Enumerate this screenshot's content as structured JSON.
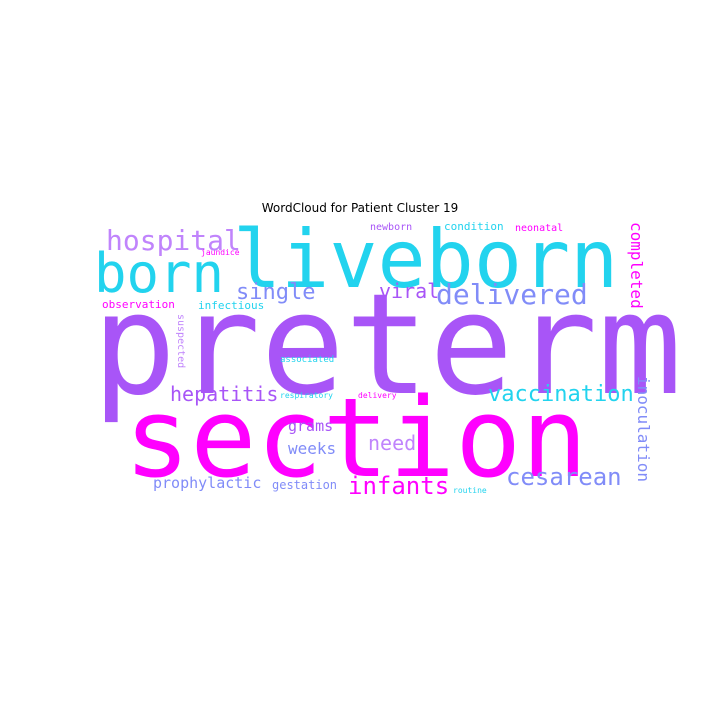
{
  "chart_data": {
    "type": "wordcloud",
    "title": "WordCloud for Patient Cluster 19",
    "palette": [
      "#ff00ff",
      "#a855f7",
      "#22d3ee",
      "#818cf8",
      "#c084fc"
    ],
    "words": [
      {
        "text": "preterm",
        "color": "#a855f7",
        "orientation": "horizontal"
      },
      {
        "text": "section",
        "color": "#ff00ff",
        "orientation": "horizontal"
      },
      {
        "text": "liveborn",
        "color": "#22d3ee",
        "orientation": "horizontal"
      },
      {
        "text": "born",
        "color": "#22d3ee",
        "orientation": "horizontal"
      },
      {
        "text": "hospital",
        "color": "#c084fc",
        "orientation": "horizontal"
      },
      {
        "text": "delivered",
        "color": "#818cf8",
        "orientation": "horizontal"
      },
      {
        "text": "single",
        "color": "#818cf8",
        "orientation": "horizontal"
      },
      {
        "text": "viral",
        "color": "#a855f7",
        "orientation": "horizontal"
      },
      {
        "text": "completed",
        "color": "#ff00ff",
        "orientation": "vertical"
      },
      {
        "text": "vaccination",
        "color": "#22d3ee",
        "orientation": "horizontal"
      },
      {
        "text": "hepatitis",
        "color": "#a855f7",
        "orientation": "horizontal"
      },
      {
        "text": "cesarean",
        "color": "#818cf8",
        "orientation": "horizontal"
      },
      {
        "text": "infants",
        "color": "#ff00ff",
        "orientation": "horizontal"
      },
      {
        "text": "need",
        "color": "#c084fc",
        "orientation": "horizontal"
      },
      {
        "text": "inoculation",
        "color": "#818cf8",
        "orientation": "vertical"
      },
      {
        "text": "weeks",
        "color": "#818cf8",
        "orientation": "horizontal"
      },
      {
        "text": "grams",
        "color": "#a855f7",
        "orientation": "horizontal"
      },
      {
        "text": "prophylactic",
        "color": "#818cf8",
        "orientation": "horizontal"
      },
      {
        "text": "gestation",
        "color": "#818cf8",
        "orientation": "horizontal"
      },
      {
        "text": "observation",
        "color": "#ff00ff",
        "orientation": "horizontal"
      },
      {
        "text": "infectious",
        "color": "#22d3ee",
        "orientation": "horizontal"
      },
      {
        "text": "suspected",
        "color": "#c084fc",
        "orientation": "vertical"
      },
      {
        "text": "newborn",
        "color": "#a855f7",
        "orientation": "horizontal"
      },
      {
        "text": "condition",
        "color": "#22d3ee",
        "orientation": "horizontal"
      },
      {
        "text": "neonatal",
        "color": "#ff00ff",
        "orientation": "horizontal"
      },
      {
        "text": "jaundice",
        "color": "#ff00ff",
        "orientation": "horizontal"
      },
      {
        "text": "associated",
        "color": "#22d3ee",
        "orientation": "horizontal"
      },
      {
        "text": "respiratory",
        "color": "#22d3ee",
        "orientation": "horizontal"
      },
      {
        "text": "delivery",
        "color": "#ff00ff",
        "orientation": "horizontal"
      },
      {
        "text": "routine",
        "color": "#22d3ee",
        "orientation": "horizontal"
      }
    ]
  }
}
